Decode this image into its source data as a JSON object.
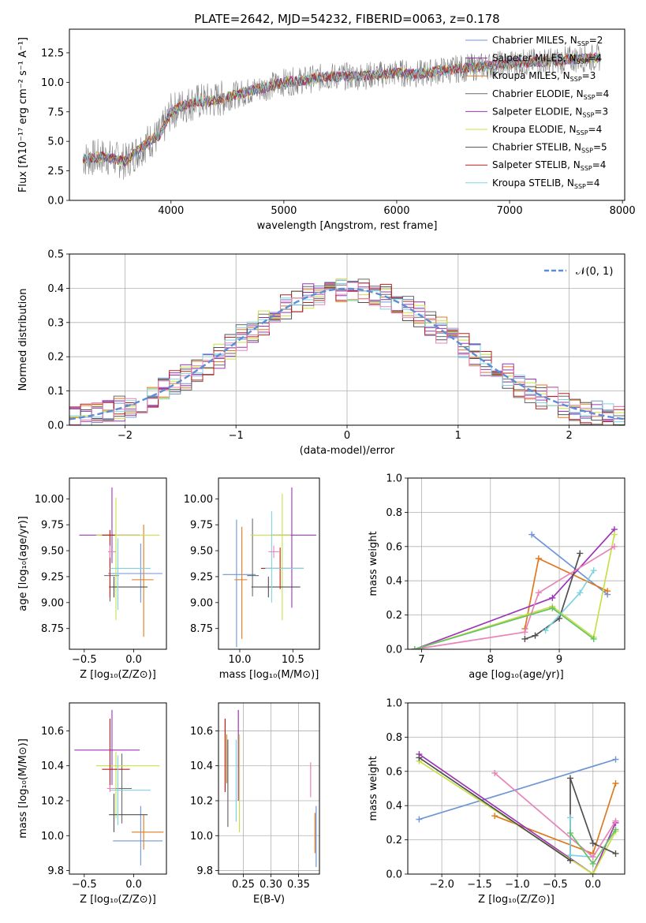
{
  "colors": {
    "miles_chabrier": "#6f96d9",
    "miles_salpeter": "#8a2b9f",
    "miles_kroupa": "#e07820",
    "elodie_chabrier": "#6a6a6a",
    "elodie_salpeter": "#9d34b8",
    "elodie_kroupa": "#c8e046",
    "stelib_chabrier": "#505050",
    "stelib_salpeter": "#b8201a",
    "stelib_kroupa": "#7fd2e0",
    "gauss": "#5b8ed6",
    "spectrum_data": "#808080",
    "grid": "#b0b0b0",
    "pink": "#e884b8",
    "green": "#66c266"
  },
  "chart_data": [
    {
      "id": "spectrum",
      "type": "line",
      "title": "PLATE=2642, MJD=54232, FIBERID=0063, z=0.178",
      "xlabel": "wavelength [Angstrom, rest frame]",
      "ylabel": "Flux [fλ10⁻¹⁷ erg cm⁻² s⁻¹ A⁻¹]",
      "xlim": [
        3100,
        8020
      ],
      "ylim": [
        0,
        14.5
      ],
      "xticks": [
        4000,
        5000,
        6000,
        7000,
        8000
      ],
      "yticks": [
        0.0,
        2.5,
        5.0,
        7.5,
        10.0,
        12.5
      ],
      "xtick_labels": [
        "4000",
        "5000",
        "6000",
        "7000",
        "8000"
      ],
      "ytick_labels": [
        "0.0",
        "2.5",
        "5.0",
        "7.5",
        "10.0",
        "12.5"
      ],
      "legend_position": "upper-right",
      "series": [
        {
          "name": "Chabrier MILES, N",
          "sub": "SSP",
          "suffix": "=2",
          "color_key": "miles_chabrier"
        },
        {
          "name": "Salpeter MILES, N",
          "sub": "SSP",
          "suffix": "=4",
          "color_key": "miles_salpeter"
        },
        {
          "name": "Kroupa MILES, N",
          "sub": "SSP",
          "suffix": "=3",
          "color_key": "miles_kroupa"
        },
        {
          "name": "Chabrier ELODIE, N",
          "sub": "SSP",
          "suffix": "=4",
          "color_key": "elodie_chabrier"
        },
        {
          "name": "Salpeter ELODIE, N",
          "sub": "SSP",
          "suffix": "=3",
          "color_key": "elodie_salpeter"
        },
        {
          "name": "Kroupa ELODIE, N",
          "sub": "SSP",
          "suffix": "=4",
          "color_key": "elodie_kroupa"
        },
        {
          "name": "Chabrier STELIB, N",
          "sub": "SSP",
          "suffix": "=5",
          "color_key": "stelib_chabrier"
        },
        {
          "name": "Salpeter STELIB, N",
          "sub": "SSP",
          "suffix": "=4",
          "color_key": "stelib_salpeter"
        },
        {
          "name": "Kroupa STELIB, N",
          "sub": "SSP",
          "suffix": "=4",
          "color_key": "stelib_kroupa"
        }
      ],
      "continuum": {
        "x": [
          3220,
          3400,
          3600,
          3800,
          3900,
          4000,
          4100,
          4200,
          4400,
          4600,
          4800,
          5000,
          5200,
          5400,
          5600,
          5800,
          6000,
          6200,
          6400,
          6600,
          6800,
          7000,
          7200,
          7400,
          7600,
          7800
        ],
        "y": [
          3.5,
          3.7,
          3.3,
          5.0,
          5.5,
          7.5,
          8.0,
          8.3,
          8.5,
          9.0,
          9.5,
          10.0,
          10.2,
          10.5,
          10.5,
          10.6,
          10.8,
          10.7,
          11.0,
          11.2,
          11.4,
          11.6,
          11.7,
          11.8,
          12.0,
          12.1
        ]
      }
    },
    {
      "id": "residuals",
      "type": "line",
      "xlabel": "(data-model)/error",
      "ylabel": "Normed distribution",
      "xlim": [
        -2.5,
        2.5
      ],
      "ylim": [
        0,
        0.5
      ],
      "xticks": [
        -2,
        -1,
        0,
        1,
        2
      ],
      "yticks": [
        0.0,
        0.1,
        0.2,
        0.3,
        0.4,
        0.5
      ],
      "xtick_labels": [
        "−2",
        "−1",
        "0",
        "1",
        "2"
      ],
      "ytick_labels": [
        "0.0",
        "0.1",
        "0.2",
        "0.3",
        "0.4",
        "0.5"
      ],
      "grid": true,
      "legend_position": "upper-right",
      "legend": "𝒩(0, 1)",
      "gaussian": {
        "mu": 0,
        "sigma": 1
      }
    },
    {
      "id": "age_vs_Z",
      "type": "scatter",
      "xlabel": "Z [log₁₀(Z/Z⊙)]",
      "ylabel": "age  [log₁₀(age/yr)]",
      "xlim": [
        -0.65,
        0.33
      ],
      "ylim": [
        8.55,
        10.2
      ],
      "xticks": [
        -0.5,
        0.0
      ],
      "yticks": [
        8.75,
        9.0,
        9.25,
        9.5,
        9.75,
        10.0
      ],
      "xtick_labels": [
        "−0.5",
        "0.0"
      ],
      "ytick_labels": [
        "8.75",
        "9.00",
        "9.25",
        "9.50",
        "9.75",
        "10.00"
      ],
      "crosses": [
        {
          "color_key": "miles_chabrier",
          "x": 0.07,
          "xerr": [
            0.33,
            0.22
          ],
          "y": 9.28,
          "yerr": [
            0.28,
            0.29
          ]
        },
        {
          "color_key": "elodie_salpeter",
          "x": -0.22,
          "xerr": [
            0.33,
            0.28
          ],
          "y": 9.65,
          "yerr": [
            0.27,
            0.46
          ]
        },
        {
          "color_key": "miles_kroupa",
          "x": 0.1,
          "xerr": [
            0.12,
            0.1
          ],
          "y": 9.22,
          "yerr": [
            0.55,
            0.53
          ]
        },
        {
          "color_key": "elodie_chabrier",
          "x": -0.24,
          "xerr": [
            0.06,
            0.09
          ],
          "y": 9.26,
          "yerr": [
            0.25,
            0.22
          ]
        },
        {
          "color_key": "elodie_kroupa",
          "x": -0.18,
          "xerr": [
            0.2,
            0.44
          ],
          "y": 9.65,
          "yerr": [
            0.82,
            0.36
          ]
        },
        {
          "color_key": "stelib_chabrier",
          "x": -0.2,
          "xerr": [
            0.05,
            0.34
          ],
          "y": 9.15,
          "yerr": [
            0.1,
            0.1
          ]
        },
        {
          "color_key": "stelib_salpeter",
          "x": -0.24,
          "xerr": [
            0.08,
            0.05
          ],
          "y": 9.65,
          "yerr": [
            0.6,
            0.05
          ]
        },
        {
          "color_key": "stelib_kroupa",
          "x": -0.16,
          "xerr": [
            0.08,
            0.33
          ],
          "y": 9.33,
          "yerr": [
            0.4,
            0.29
          ]
        },
        {
          "color_key": "pink",
          "x": -0.24,
          "xerr": [
            0.02,
            0.06
          ],
          "y": 9.49,
          "yerr": [
            0.06,
            0.06
          ]
        }
      ]
    },
    {
      "id": "age_vs_mass",
      "type": "scatter",
      "xlabel": "mass [log₁₀(M/M⊙)]",
      "ylabel": "",
      "xlim": [
        9.8,
        10.75
      ],
      "ylim": [
        8.55,
        10.2
      ],
      "xticks": [
        10.0,
        10.5
      ],
      "yticks": [
        8.75,
        9.0,
        9.25,
        9.5,
        9.75,
        10.0
      ],
      "xtick_labels": [
        "10.0",
        "10.5"
      ],
      "ytick_labels": [
        "8.75",
        "9.00",
        "9.25",
        "9.50",
        "9.75",
        "10.00"
      ],
      "crosses": [
        {
          "color_key": "miles_chabrier",
          "x": 9.97,
          "xerr": [
            0.13,
            0.18
          ],
          "y": 9.27,
          "yerr": [
            0.7,
            0.53
          ]
        },
        {
          "color_key": "elodie_salpeter",
          "x": 10.49,
          "xerr": [
            0.19,
            0.23
          ],
          "y": 9.65,
          "yerr": [
            0.7,
            0.46
          ]
        },
        {
          "color_key": "miles_kroupa",
          "x": 10.02,
          "xerr": [
            0.07,
            0.05
          ],
          "y": 9.22,
          "yerr": [
            0.57,
            0.51
          ]
        },
        {
          "color_key": "elodie_chabrier",
          "x": 10.12,
          "xerr": [
            0.05,
            0.06
          ],
          "y": 9.26,
          "yerr": [
            0.2,
            0.55
          ]
        },
        {
          "color_key": "elodie_kroupa",
          "x": 10.4,
          "xerr": [
            0.3,
            0.08
          ],
          "y": 9.65,
          "yerr": [
            0.82,
            0.4
          ]
        },
        {
          "color_key": "stelib_chabrier",
          "x": 10.27,
          "xerr": [
            0.16,
            0.3
          ],
          "y": 9.15,
          "yerr": [
            0.1,
            0.1
          ]
        },
        {
          "color_key": "stelib_salpeter",
          "x": 10.38,
          "xerr": [
            0.18,
            0.22
          ],
          "y": 9.33,
          "yerr": [
            0.2,
            0.2
          ]
        },
        {
          "color_key": "stelib_kroupa",
          "x": 10.3,
          "xerr": [
            0.06,
            0.3
          ],
          "y": 9.33,
          "yerr": [
            0.33,
            0.55
          ]
        },
        {
          "color_key": "pink",
          "x": 10.32,
          "xerr": [
            0.05,
            0.05
          ],
          "y": 9.49,
          "yerr": [
            0.06,
            0.06
          ]
        }
      ]
    },
    {
      "id": "weight_vs_age",
      "type": "line",
      "xlabel": "age  [log₁₀(age/yr)]",
      "ylabel": "mass weight",
      "xlim": [
        6.8,
        9.95
      ],
      "ylim": [
        0,
        1.0
      ],
      "xticks": [
        7,
        8,
        9
      ],
      "yticks": [
        0.0,
        0.2,
        0.4,
        0.6,
        0.8,
        1.0
      ],
      "xtick_labels": [
        "7",
        "8",
        "9"
      ],
      "ytick_labels": [
        "0.0",
        "0.2",
        "0.4",
        "0.6",
        "0.8",
        "1.0"
      ],
      "grid": true,
      "series": [
        {
          "color_key": "miles_chabrier",
          "x": [
            8.6,
            9.7
          ],
          "y": [
            0.67,
            0.32
          ]
        },
        {
          "color_key": "miles_kroupa",
          "x": [
            8.5,
            8.7,
            9.7
          ],
          "y": [
            0.12,
            0.53,
            0.34
          ]
        },
        {
          "color_key": "elodie_salpeter",
          "x": [
            6.9,
            8.9,
            9.8
          ],
          "y": [
            0.0,
            0.3,
            0.7
          ]
        },
        {
          "color_key": "elodie_kroupa",
          "x": [
            6.9,
            8.9,
            9.5,
            9.8
          ],
          "y": [
            0.0,
            0.25,
            0.07,
            0.67
          ]
        },
        {
          "color_key": "stelib_chabrier",
          "x": [
            8.5,
            8.65,
            9.0,
            9.3
          ],
          "y": [
            0.06,
            0.08,
            0.18,
            0.56
          ]
        },
        {
          "color_key": "stelib_kroupa",
          "x": [
            8.8,
            9.3,
            9.5
          ],
          "y": [
            0.11,
            0.33,
            0.46
          ]
        },
        {
          "color_key": "pink",
          "x": [
            6.9,
            8.5,
            8.7,
            9.8
          ],
          "y": [
            0.0,
            0.1,
            0.33,
            0.6
          ]
        },
        {
          "color_key": "green",
          "x": [
            6.9,
            8.9,
            9.5
          ],
          "y": [
            0.0,
            0.24,
            0.06
          ]
        }
      ]
    },
    {
      "id": "mass_vs_Z",
      "type": "scatter",
      "xlabel": "Z [log₁₀(Z/Z⊙)]",
      "ylabel": "mass [log₁₀(M/M⊙)]",
      "xlim": [
        -0.65,
        0.33
      ],
      "ylim": [
        9.78,
        10.76
      ],
      "xticks": [
        -0.5,
        0.0
      ],
      "yticks": [
        9.8,
        10.0,
        10.2,
        10.4,
        10.6
      ],
      "xtick_labels": [
        "−0.5",
        "0.0"
      ],
      "ytick_labels": [
        "9.8",
        "10.0",
        "10.2",
        "10.4",
        "10.6"
      ],
      "crosses": [
        {
          "color_key": "miles_chabrier",
          "x": 0.07,
          "xerr": [
            0.28,
            0.22
          ],
          "y": 9.97,
          "yerr": [
            0.14,
            0.2
          ]
        },
        {
          "color_key": "elodie_salpeter",
          "x": -0.22,
          "xerr": [
            0.38,
            0.28
          ],
          "y": 10.49,
          "yerr": [
            0.2,
            0.23
          ]
        },
        {
          "color_key": "miles_kroupa",
          "x": 0.1,
          "xerr": [
            0.12,
            0.2
          ],
          "y": 10.02,
          "yerr": [
            0.1,
            0.1
          ]
        },
        {
          "color_key": "elodie_chabrier",
          "x": -0.12,
          "xerr": [
            0.1,
            0.1
          ],
          "y": 10.27,
          "yerr": [
            0.2,
            0.2
          ]
        },
        {
          "color_key": "elodie_kroupa",
          "x": -0.18,
          "xerr": [
            0.2,
            0.44
          ],
          "y": 10.4,
          "yerr": [
            0.3,
            0.08
          ]
        },
        {
          "color_key": "stelib_chabrier",
          "x": -0.2,
          "xerr": [
            0.05,
            0.34
          ],
          "y": 10.12,
          "yerr": [
            0.1,
            0.12
          ]
        },
        {
          "color_key": "stelib_salpeter",
          "x": -0.24,
          "xerr": [
            0.08,
            0.2
          ],
          "y": 10.38,
          "yerr": [
            0.12,
            0.29
          ]
        },
        {
          "color_key": "stelib_kroupa",
          "x": -0.16,
          "xerr": [
            0.08,
            0.33
          ],
          "y": 10.26,
          "yerr": [
            0.2,
            0.2
          ]
        },
        {
          "color_key": "pink",
          "x": -0.24,
          "xerr": [
            0.03,
            0.06
          ],
          "y": 10.27,
          "yerr": [
            0.02,
            0.02
          ]
        }
      ]
    },
    {
      "id": "mass_vs_ebv",
      "type": "scatter",
      "xlabel": "E(B-V)",
      "ylabel": "",
      "xlim": [
        0.205,
        0.388
      ],
      "ylim": [
        9.78,
        10.76
      ],
      "xticks": [
        0.25,
        0.3,
        0.35
      ],
      "yticks": [
        9.8,
        10.0,
        10.2,
        10.4,
        10.6
      ],
      "xtick_labels": [
        "0.25",
        "0.30",
        "0.35"
      ],
      "ytick_labels": [
        "9.8",
        "10.0",
        "10.2",
        "10.4",
        "10.6"
      ],
      "vlines": [
        {
          "color_key": "stelib_salpeter",
          "x": 0.217,
          "y": [
            10.25,
            10.67
          ]
        },
        {
          "color_key": "miles_kroupa",
          "x": 0.22,
          "y": [
            10.3,
            10.58
          ]
        },
        {
          "color_key": "elodie_chabrier",
          "x": 0.222,
          "y": [
            10.05,
            10.55
          ]
        },
        {
          "color_key": "elodie_salpeter",
          "x": 0.241,
          "y": [
            10.2,
            10.72
          ]
        },
        {
          "color_key": "elodie_kroupa",
          "x": 0.243,
          "y": [
            10.02,
            10.58
          ]
        },
        {
          "color_key": "stelib_kroupa",
          "x": 0.237,
          "y": [
            10.08,
            10.55
          ]
        },
        {
          "color_key": "pink",
          "x": 0.372,
          "y": [
            10.22,
            10.42
          ]
        },
        {
          "color_key": "miles_chabrier",
          "x": 0.382,
          "y": [
            9.82,
            10.17
          ]
        },
        {
          "color_key": "miles_kroupa",
          "x": 0.38,
          "y": [
            9.9,
            10.13
          ]
        }
      ]
    },
    {
      "id": "weight_vs_Z",
      "type": "line",
      "xlabel": "Z [log₁₀(Z/Z⊙)]",
      "ylabel": "mass weight",
      "xlim": [
        -2.45,
        0.42
      ],
      "ylim": [
        0,
        1.0
      ],
      "xticks": [
        -2.0,
        -1.5,
        -1.0,
        -0.5,
        0.0
      ],
      "yticks": [
        0.0,
        0.2,
        0.4,
        0.6,
        0.8,
        1.0
      ],
      "xtick_labels": [
        "−2.0",
        "−1.5",
        "−1.0",
        "−0.5",
        "0.0"
      ],
      "ytick_labels": [
        "0.0",
        "0.2",
        "0.4",
        "0.6",
        "0.8",
        "1.0"
      ],
      "grid": true,
      "series": [
        {
          "color_key": "miles_chabrier",
          "x": [
            -2.3,
            0.3
          ],
          "y": [
            0.32,
            0.67
          ]
        },
        {
          "color_key": "miles_kroupa",
          "x": [
            -1.3,
            0.0,
            0.3
          ],
          "y": [
            0.34,
            0.12,
            0.53
          ]
        },
        {
          "color_key": "elodie_salpeter",
          "x": [
            -2.3,
            0.0,
            0.3
          ],
          "y": [
            0.7,
            0.0,
            0.3
          ]
        },
        {
          "color_key": "elodie_kroupa",
          "x": [
            -2.3,
            0.0,
            0.3
          ],
          "y": [
            0.66,
            0.0,
            0.25
          ]
        },
        {
          "color_key": "stelib_chabrier",
          "x": [
            -2.3,
            -0.3,
            -0.3,
            0.0,
            0.3
          ],
          "y": [
            0.68,
            0.08,
            0.56,
            0.18,
            0.12
          ]
        },
        {
          "color_key": "stelib_kroupa",
          "x": [
            -0.3,
            -0.3,
            0.0
          ],
          "y": [
            0.33,
            0.11,
            0.1
          ]
        },
        {
          "color_key": "pink",
          "x": [
            -1.3,
            0.0,
            0.3
          ],
          "y": [
            0.59,
            0.1,
            0.31
          ]
        },
        {
          "color_key": "green",
          "x": [
            -0.3,
            0.0,
            0.3
          ],
          "y": [
            0.24,
            0.06,
            0.26
          ]
        }
      ]
    }
  ]
}
